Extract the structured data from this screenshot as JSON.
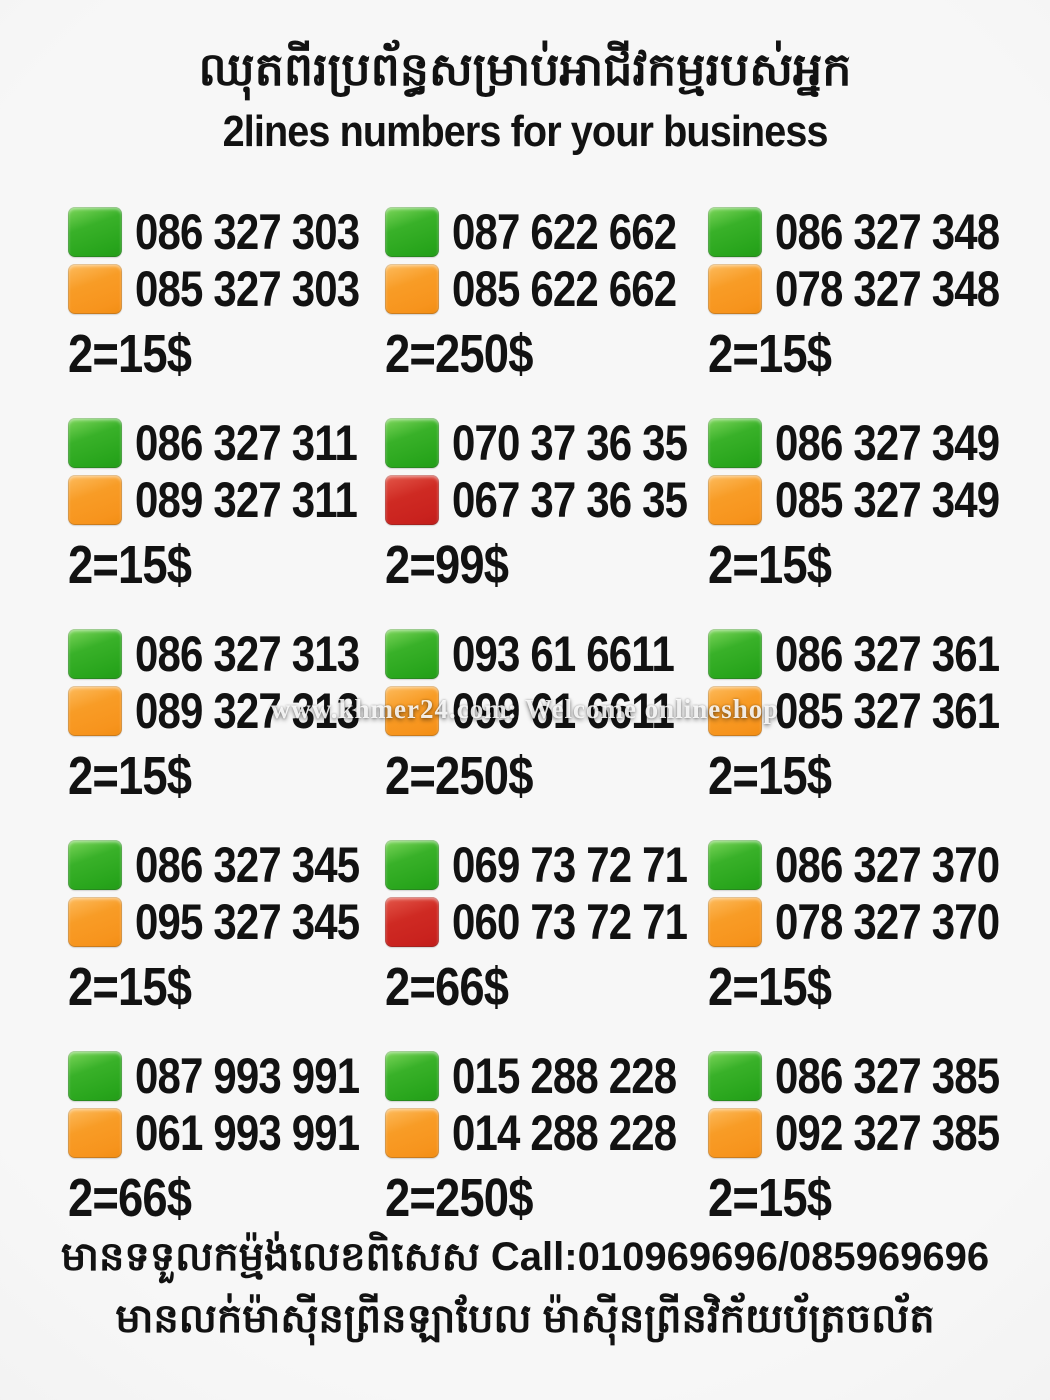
{
  "header": {
    "title_khmer": "ឈុតពីរប្រព័ន្ធសម្រាប់អាជីវកម្មរបស់អ្នក",
    "subtitle": "2lines numbers for your business"
  },
  "watermark": "www.khmer24.com: Welcome onlineshop",
  "colors": {
    "green": "#2aa51e",
    "orange": "#f7941d",
    "red": "#c9221e",
    "text": "#121212",
    "background": "#f3f3f3"
  },
  "listings": [
    {
      "line1": {
        "color": "green",
        "number": "086 327 303"
      },
      "line2": {
        "color": "orange",
        "number": "085 327 303"
      },
      "price": "2=15$"
    },
    {
      "line1": {
        "color": "green",
        "number": "087 622 662"
      },
      "line2": {
        "color": "orange",
        "number": "085 622 662"
      },
      "price": "2=250$"
    },
    {
      "line1": {
        "color": "green",
        "number": "086 327 348"
      },
      "line2": {
        "color": "orange",
        "number": "078 327 348"
      },
      "price": "2=15$"
    },
    {
      "line1": {
        "color": "green",
        "number": "086 327 311"
      },
      "line2": {
        "color": "orange",
        "number": "089 327 311"
      },
      "price": "2=15$"
    },
    {
      "line1": {
        "color": "green",
        "number": "070 37 36 35"
      },
      "line2": {
        "color": "red",
        "number": "067 37 36 35"
      },
      "price": "2=99$"
    },
    {
      "line1": {
        "color": "green",
        "number": "086 327 349"
      },
      "line2": {
        "color": "orange",
        "number": "085 327 349"
      },
      "price": "2=15$"
    },
    {
      "line1": {
        "color": "green",
        "number": "086 327 313"
      },
      "line2": {
        "color": "orange",
        "number": "089 327 313"
      },
      "price": "2=15$"
    },
    {
      "line1": {
        "color": "green",
        "number": "093 61 6611"
      },
      "line2": {
        "color": "orange",
        "number": "099 61 6611"
      },
      "price": "2=250$"
    },
    {
      "line1": {
        "color": "green",
        "number": "086 327 361"
      },
      "line2": {
        "color": "orange",
        "number": "085 327 361"
      },
      "price": "2=15$"
    },
    {
      "line1": {
        "color": "green",
        "number": "086 327 345"
      },
      "line2": {
        "color": "orange",
        "number": "095 327 345"
      },
      "price": "2=15$"
    },
    {
      "line1": {
        "color": "green",
        "number": "069 73 72 71"
      },
      "line2": {
        "color": "red",
        "number": "060 73 72 71"
      },
      "price": "2=66$"
    },
    {
      "line1": {
        "color": "green",
        "number": "086 327 370"
      },
      "line2": {
        "color": "orange",
        "number": "078 327 370"
      },
      "price": "2=15$"
    },
    {
      "line1": {
        "color": "green",
        "number": "087 993 991"
      },
      "line2": {
        "color": "orange",
        "number": "061 993 991"
      },
      "price": "2=66$"
    },
    {
      "line1": {
        "color": "green",
        "number": "015 288 228"
      },
      "line2": {
        "color": "orange",
        "number": "014 288 228"
      },
      "price": "2=250$"
    },
    {
      "line1": {
        "color": "green",
        "number": "086 327 385"
      },
      "line2": {
        "color": "orange",
        "number": "092 327 385"
      },
      "price": "2=15$"
    }
  ],
  "footer": {
    "contact_line": "មានទទួលកម្ម៉ង់លេខពិសេស Call:010969696/085969696",
    "note_line": "មានលក់ម៉ាស៊ីនព្រីនឡាបែល ម៉ាស៊ីនព្រីនវិក័យប័ត្រចល័ត"
  }
}
